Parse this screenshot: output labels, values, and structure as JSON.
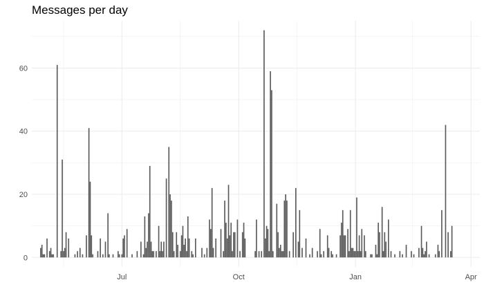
{
  "chart_data": {
    "type": "bar",
    "title": "Messages per day",
    "xlabel": "",
    "ylabel": "",
    "x_axis": {
      "type": "date",
      "range": [
        "2019-04-21",
        "2020-04-08"
      ],
      "ticks": [
        {
          "label": "Jul",
          "value": "2019-07-01"
        },
        {
          "label": "Oct",
          "value": "2019-10-01"
        },
        {
          "label": "Jan",
          "value": "2020-01-01"
        },
        {
          "label": "Apr",
          "value": "2020-04-01"
        }
      ],
      "minor_ticks": [
        "2019-05-16",
        "2019-08-16",
        "2019-11-16",
        "2020-02-15"
      ]
    },
    "y_axis": {
      "range": [
        -3,
        75
      ],
      "ticks": [
        0,
        20,
        40,
        60
      ],
      "minor_ticks": [
        10,
        30,
        50,
        70
      ]
    },
    "grid": true,
    "bar_color": "#595959",
    "grid_color": "#ebebeb",
    "points": [
      [
        "2019-04-28",
        3
      ],
      [
        "2019-04-29",
        4
      ],
      [
        "2019-04-30",
        1
      ],
      [
        "2019-05-01",
        1
      ],
      [
        "2019-05-03",
        6
      ],
      [
        "2019-05-05",
        2
      ],
      [
        "2019-05-06",
        3
      ],
      [
        "2019-05-07",
        1
      ],
      [
        "2019-05-08",
        1
      ],
      [
        "2019-05-11",
        61
      ],
      [
        "2019-05-14",
        2
      ],
      [
        "2019-05-15",
        31
      ],
      [
        "2019-05-16",
        2
      ],
      [
        "2019-05-17",
        3
      ],
      [
        "2019-05-18",
        8
      ],
      [
        "2019-05-20",
        6
      ],
      [
        "2019-05-25",
        1
      ],
      [
        "2019-05-27",
        2
      ],
      [
        "2019-05-29",
        3
      ],
      [
        "2019-05-31",
        1
      ],
      [
        "2019-06-03",
        7
      ],
      [
        "2019-06-05",
        41
      ],
      [
        "2019-06-06",
        24
      ],
      [
        "2019-06-07",
        7
      ],
      [
        "2019-06-08",
        1
      ],
      [
        "2019-06-12",
        2
      ],
      [
        "2019-06-14",
        6
      ],
      [
        "2019-06-16",
        1
      ],
      [
        "2019-06-18",
        5
      ],
      [
        "2019-06-20",
        14
      ],
      [
        "2019-06-21",
        1
      ],
      [
        "2019-06-24",
        1
      ],
      [
        "2019-06-28",
        2
      ],
      [
        "2019-06-29",
        1
      ],
      [
        "2019-07-01",
        1
      ],
      [
        "2019-07-02",
        6
      ],
      [
        "2019-07-03",
        7
      ],
      [
        "2019-07-05",
        9
      ],
      [
        "2019-07-09",
        1
      ],
      [
        "2019-07-13",
        2
      ],
      [
        "2019-07-16",
        5
      ],
      [
        "2019-07-18",
        1
      ],
      [
        "2019-07-19",
        13
      ],
      [
        "2019-07-20",
        3
      ],
      [
        "2019-07-21",
        5
      ],
      [
        "2019-07-22",
        14
      ],
      [
        "2019-07-23",
        29
      ],
      [
        "2019-07-24",
        5
      ],
      [
        "2019-07-25",
        2
      ],
      [
        "2019-07-26",
        2
      ],
      [
        "2019-07-28",
        2
      ],
      [
        "2019-07-30",
        10
      ],
      [
        "2019-07-31",
        2
      ],
      [
        "2019-08-01",
        5
      ],
      [
        "2019-08-02",
        2
      ],
      [
        "2019-08-03",
        5
      ],
      [
        "2019-08-05",
        25
      ],
      [
        "2019-08-07",
        35
      ],
      [
        "2019-08-08",
        20
      ],
      [
        "2019-08-09",
        18
      ],
      [
        "2019-08-10",
        8
      ],
      [
        "2019-08-11",
        2
      ],
      [
        "2019-08-13",
        8
      ],
      [
        "2019-08-14",
        4
      ],
      [
        "2019-08-16",
        2
      ],
      [
        "2019-08-17",
        7
      ],
      [
        "2019-08-18",
        10
      ],
      [
        "2019-08-19",
        4
      ],
      [
        "2019-08-20",
        6
      ],
      [
        "2019-08-21",
        2
      ],
      [
        "2019-08-22",
        13
      ],
      [
        "2019-08-23",
        6
      ],
      [
        "2019-08-25",
        2
      ],
      [
        "2019-08-26",
        1
      ],
      [
        "2019-08-28",
        6
      ],
      [
        "2019-09-02",
        3
      ],
      [
        "2019-09-04",
        1
      ],
      [
        "2019-09-06",
        3
      ],
      [
        "2019-09-08",
        12
      ],
      [
        "2019-09-09",
        9
      ],
      [
        "2019-09-10",
        22
      ],
      [
        "2019-09-11",
        3
      ],
      [
        "2019-09-13",
        6
      ],
      [
        "2019-09-17",
        9
      ],
      [
        "2019-09-19",
        2
      ],
      [
        "2019-09-20",
        18
      ],
      [
        "2019-09-21",
        11
      ],
      [
        "2019-09-22",
        6
      ],
      [
        "2019-09-23",
        23
      ],
      [
        "2019-09-24",
        7
      ],
      [
        "2019-09-25",
        11
      ],
      [
        "2019-09-26",
        2
      ],
      [
        "2019-09-27",
        8
      ],
      [
        "2019-09-28",
        8
      ],
      [
        "2019-09-30",
        12
      ],
      [
        "2019-10-02",
        2
      ],
      [
        "2019-10-04",
        8
      ],
      [
        "2019-10-05",
        11
      ],
      [
        "2019-10-06",
        6
      ],
      [
        "2019-10-14",
        2
      ],
      [
        "2019-10-15",
        12
      ],
      [
        "2019-10-17",
        2
      ],
      [
        "2019-10-19",
        2
      ],
      [
        "2019-10-21",
        72
      ],
      [
        "2019-10-22",
        6
      ],
      [
        "2019-10-23",
        10
      ],
      [
        "2019-10-24",
        9
      ],
      [
        "2019-10-25",
        2
      ],
      [
        "2019-10-26",
        59
      ],
      [
        "2019-10-27",
        53
      ],
      [
        "2019-10-28",
        2
      ],
      [
        "2019-10-31",
        17
      ],
      [
        "2019-11-01",
        8
      ],
      [
        "2019-11-02",
        3
      ],
      [
        "2019-11-03",
        4
      ],
      [
        "2019-11-04",
        2
      ],
      [
        "2019-11-05",
        2
      ],
      [
        "2019-11-06",
        18
      ],
      [
        "2019-11-07",
        20
      ],
      [
        "2019-11-08",
        18
      ],
      [
        "2019-11-10",
        2
      ],
      [
        "2019-11-13",
        8
      ],
      [
        "2019-11-15",
        22
      ],
      [
        "2019-11-17",
        5
      ],
      [
        "2019-11-18",
        15
      ],
      [
        "2019-11-20",
        3
      ],
      [
        "2019-11-23",
        6
      ],
      [
        "2019-11-26",
        1
      ],
      [
        "2019-11-28",
        3
      ],
      [
        "2019-12-02",
        2
      ],
      [
        "2019-12-04",
        9
      ],
      [
        "2019-12-05",
        1
      ],
      [
        "2019-12-07",
        2
      ],
      [
        "2019-12-10",
        7
      ],
      [
        "2019-12-11",
        3
      ],
      [
        "2019-12-13",
        2
      ],
      [
        "2019-12-14",
        1
      ],
      [
        "2019-12-17",
        1
      ],
      [
        "2019-12-20",
        7
      ],
      [
        "2019-12-21",
        11
      ],
      [
        "2019-12-22",
        15
      ],
      [
        "2019-12-23",
        7
      ],
      [
        "2019-12-24",
        7
      ],
      [
        "2019-12-26",
        9
      ],
      [
        "2019-12-27",
        2
      ],
      [
        "2019-12-28",
        15
      ],
      [
        "2019-12-29",
        3
      ],
      [
        "2019-12-30",
        3
      ],
      [
        "2019-12-31",
        2
      ],
      [
        "2020-01-01",
        2
      ],
      [
        "2020-01-02",
        19
      ],
      [
        "2020-01-03",
        2
      ],
      [
        "2020-01-04",
        7
      ],
      [
        "2020-01-05",
        2
      ],
      [
        "2020-01-06",
        9
      ],
      [
        "2020-01-08",
        7
      ],
      [
        "2020-01-09",
        2
      ],
      [
        "2020-01-13",
        1
      ],
      [
        "2020-01-14",
        1
      ],
      [
        "2020-01-17",
        4
      ],
      [
        "2020-01-18",
        1
      ],
      [
        "2020-01-19",
        11
      ],
      [
        "2020-01-20",
        8
      ],
      [
        "2020-01-22",
        16
      ],
      [
        "2020-01-23",
        2
      ],
      [
        "2020-01-24",
        8
      ],
      [
        "2020-01-25",
        5
      ],
      [
        "2020-01-27",
        12
      ],
      [
        "2020-01-29",
        2
      ],
      [
        "2020-02-01",
        1
      ],
      [
        "2020-02-05",
        2
      ],
      [
        "2020-02-07",
        1
      ],
      [
        "2020-02-10",
        4
      ],
      [
        "2020-02-14",
        2
      ],
      [
        "2020-02-16",
        1
      ],
      [
        "2020-02-20",
        3
      ],
      [
        "2020-02-22",
        10
      ],
      [
        "2020-02-23",
        3
      ],
      [
        "2020-02-24",
        1
      ],
      [
        "2020-02-25",
        2
      ],
      [
        "2020-02-26",
        5
      ],
      [
        "2020-02-28",
        1
      ],
      [
        "2020-03-04",
        1
      ],
      [
        "2020-03-06",
        4
      ],
      [
        "2020-03-07",
        2
      ],
      [
        "2020-03-09",
        15
      ],
      [
        "2020-03-12",
        42
      ],
      [
        "2020-03-14",
        8
      ],
      [
        "2020-03-16",
        2
      ],
      [
        "2020-03-17",
        10
      ]
    ]
  }
}
